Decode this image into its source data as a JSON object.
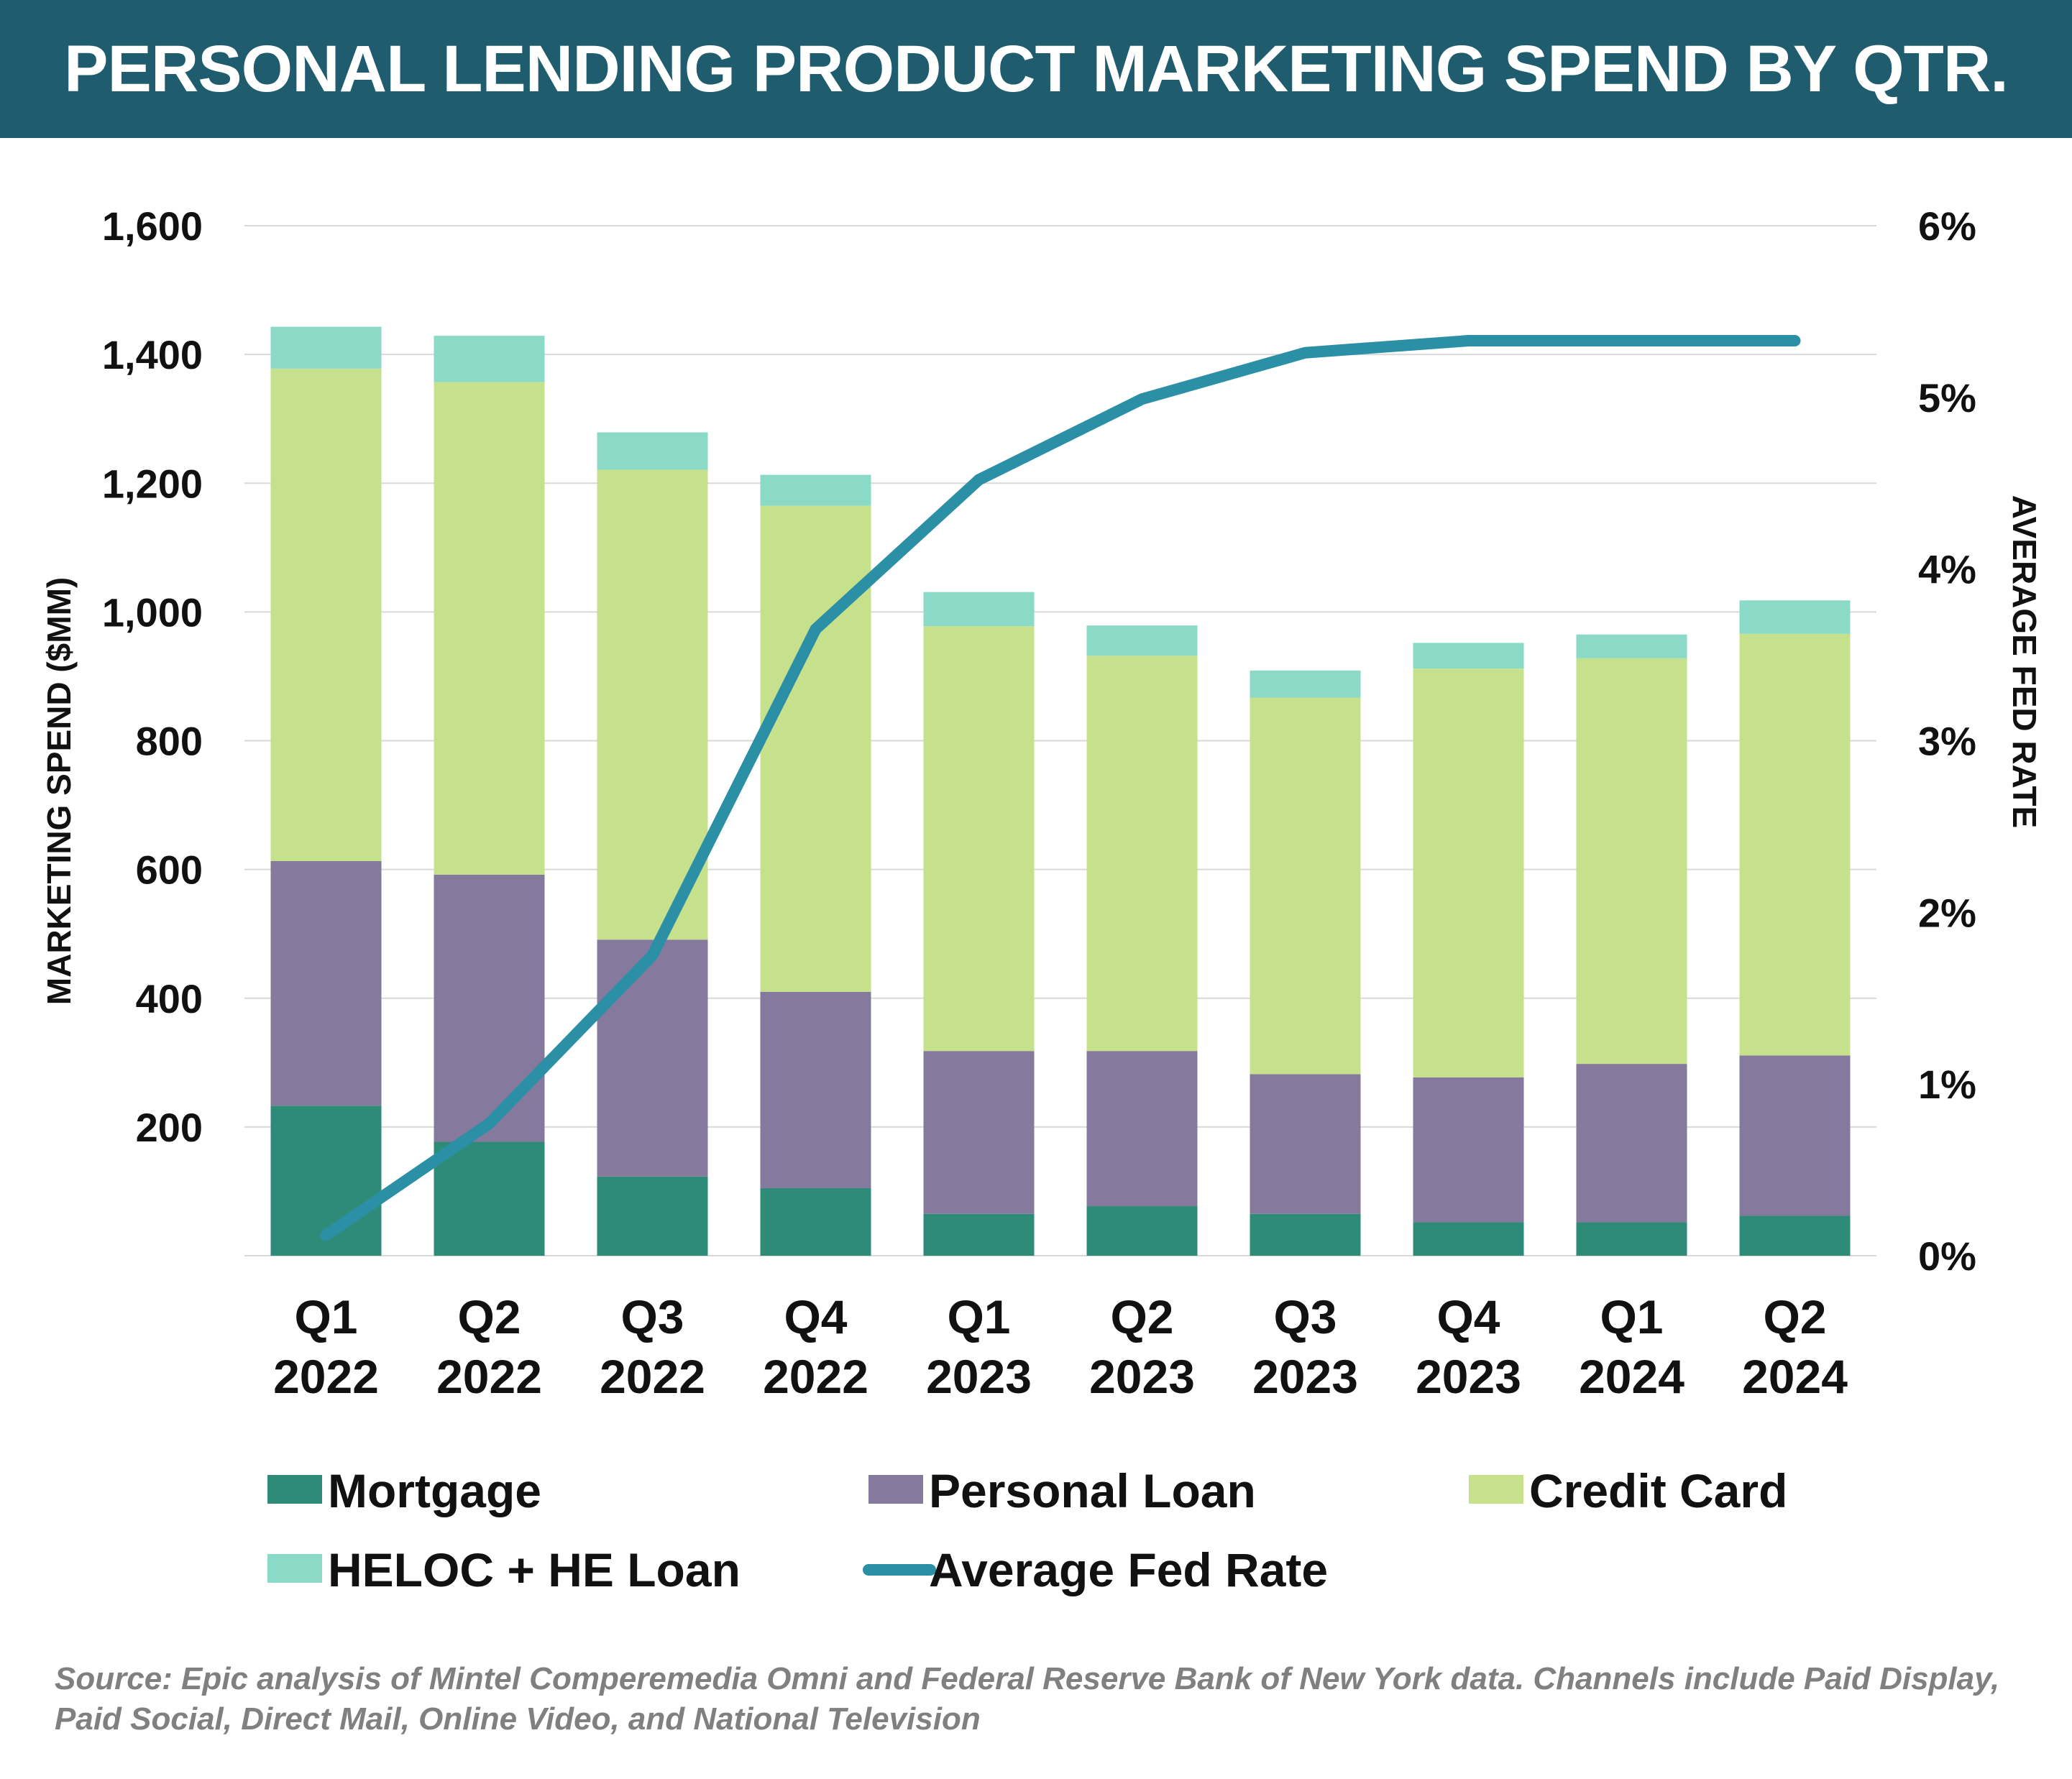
{
  "title": "PERSONAL LENDING PRODUCT MARKETING SPEND BY QTR.",
  "source": "Source: Epic analysis of Mintel Comperemedia Omni and Federal Reserve Bank of New York data. Channels include Paid Display, Paid Social, Direct Mail, Online Video, and National Television",
  "chart_data": {
    "type": "bar",
    "stacked": true,
    "categories": [
      [
        "Q1",
        "2022"
      ],
      [
        "Q2",
        "2022"
      ],
      [
        "Q3",
        "2022"
      ],
      [
        "Q4",
        "2022"
      ],
      [
        "Q1",
        "2023"
      ],
      [
        "Q2",
        "2023"
      ],
      [
        "Q3",
        "2023"
      ],
      [
        "Q4",
        "2023"
      ],
      [
        "Q1",
        "2024"
      ],
      [
        "Q2",
        "2024"
      ]
    ],
    "series": [
      {
        "name": "Mortgage",
        "color": "#2e8b78",
        "values": [
          233,
          177,
          123,
          105,
          65,
          77,
          65,
          52,
          52,
          62
        ]
      },
      {
        "name": "Personal Loan",
        "color": "#86799e",
        "values": [
          380,
          415,
          368,
          305,
          253,
          241,
          217,
          225,
          246,
          249
        ]
      },
      {
        "name": "Credit Card",
        "color": "#c5e18b",
        "values": [
          765,
          765,
          730,
          755,
          660,
          614,
          585,
          635,
          630,
          655
        ]
      },
      {
        "name": "HELOC + HE Loan",
        "color": "#8bdac8",
        "values": [
          65,
          72,
          58,
          48,
          53,
          47,
          42,
          40,
          37,
          52
        ]
      }
    ],
    "line_series": {
      "name": "Average Fed Rate",
      "color": "#2b8fa6",
      "axis": "right",
      "values": [
        0.12,
        0.77,
        1.75,
        3.65,
        4.52,
        4.99,
        5.26,
        5.33,
        5.33,
        5.33
      ]
    },
    "ylabel": "MARKETING SPEND ($MM)",
    "y2label": "AVERAGE FED RATE",
    "ylim": [
      0,
      1600
    ],
    "yticks": [
      200,
      400,
      600,
      800,
      1000,
      1200,
      1400,
      1600
    ],
    "ytick_labels": [
      "200",
      "400",
      "600",
      "800",
      "1,000",
      "1,200",
      "1,400",
      "1,600"
    ],
    "y2lim": [
      0,
      6
    ],
    "y2ticks": [
      0,
      1,
      2,
      3,
      4,
      5,
      6
    ],
    "y2tick_labels": [
      "0%",
      "1%",
      "2%",
      "3%",
      "4%",
      "5%",
      "6%"
    ],
    "grid": true,
    "legend_position": "bottom"
  }
}
